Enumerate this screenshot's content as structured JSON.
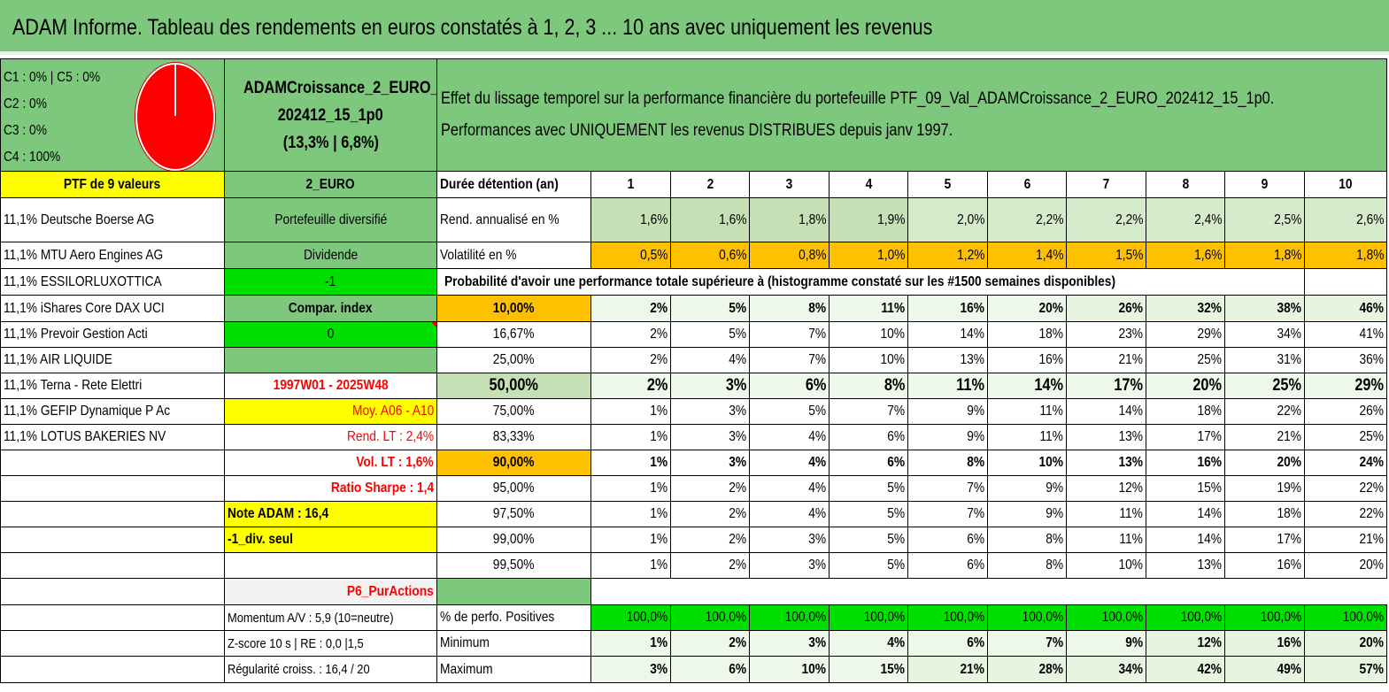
{
  "title": "ADAM Informe. Tableau des rendements en euros constatés à 1, 2, 3 ... 10 ans avec uniquement les revenus",
  "alloc": {
    "l1": "C1 : 0% | C5 : 0%",
    "l2": "C2 : 0%",
    "l3": "C3 : 0%",
    "l4": "C4 : 100%"
  },
  "portfolio": {
    "name1": "ADAMCroissance_2_EURO_",
    "name2": "202412_15_1p0",
    "stats": "(13,3% | 6,8%)"
  },
  "desc": {
    "line1": "Effet du lissage temporel sur la performance financière du portefeuille PTF_09_Val_ADAMCroissance_2_EURO_202412_15_1p0.",
    "line2": "Performances avec UNIQUEMENT les revenus DISTRIBUES depuis janv 1997."
  },
  "ptf_label": "PTF de 9 valeurs",
  "currency": "2_EURO",
  "holdings": [
    "11,1% Deutsche Boerse AG",
    "11,1% MTU Aero Engines AG",
    "11,1% ESSILORLUXOTTICA",
    "11,1% iShares Core DAX UCI",
    "11,1% Prevoir Gestion Acti",
    "11,1% AIR LIQUIDE",
    "11,1% Terna - Rete Elettri",
    "11,1% GEFIP Dynamique P Ac",
    "11,1% LOTUS BAKERIES NV"
  ],
  "info": {
    "type": "Portefeuille diversifié",
    "dividend": "Dividende",
    "div_value": "-1",
    "compar": "Compar. index",
    "compar_value": "0",
    "period": "1997W01 - 2025W48",
    "moy": "Moy. A06 - A10",
    "rend_lt": "Rend. LT : 2,4%",
    "vol_lt": "Vol. LT : 1,6%",
    "sharpe": "Ratio Sharpe : 1,4",
    "note": "Note ADAM : 16,4",
    "div_seul": "-1_div. seul",
    "p6": "P6_PurActions",
    "momentum": "Momentum A/V : 5,9 (10=neutre)",
    "zscore": "Z-score 10 s | RE : 0,0 |1,5",
    "regularite": "Régularité croiss. : 16,4 / 20"
  },
  "table": {
    "duration_label": "Durée détention (an)",
    "years": [
      "1",
      "2",
      "3",
      "4",
      "5",
      "6",
      "7",
      "8",
      "9",
      "10"
    ],
    "rend_label": "Rend. annualisé en %",
    "rend": [
      "1,6%",
      "1,6%",
      "1,8%",
      "1,9%",
      "2,0%",
      "2,2%",
      "2,2%",
      "2,4%",
      "2,5%",
      "2,6%"
    ],
    "vol_label": "Volatilité en %",
    "vol": [
      "0,5%",
      "0,6%",
      "0,8%",
      "1,0%",
      "1,2%",
      "1,4%",
      "1,5%",
      "1,6%",
      "1,8%",
      "1,8%"
    ],
    "prob_label": "Probabilité d'avoir une performance totale supérieure à (histogramme constaté sur les #1500 semaines disponibles)",
    "prob_rows": [
      {
        "level": "10,00%",
        "values": [
          "2%",
          "5%",
          "8%",
          "11%",
          "16%",
          "20%",
          "26%",
          "32%",
          "38%",
          "46%"
        ]
      },
      {
        "level": "16,67%",
        "values": [
          "2%",
          "5%",
          "7%",
          "10%",
          "14%",
          "18%",
          "23%",
          "29%",
          "34%",
          "41%"
        ]
      },
      {
        "level": "25,00%",
        "values": [
          "2%",
          "4%",
          "7%",
          "10%",
          "13%",
          "16%",
          "21%",
          "25%",
          "31%",
          "36%"
        ]
      },
      {
        "level": "50,00%",
        "values": [
          "2%",
          "3%",
          "6%",
          "8%",
          "11%",
          "14%",
          "17%",
          "20%",
          "25%",
          "29%"
        ]
      },
      {
        "level": "75,00%",
        "values": [
          "1%",
          "3%",
          "5%",
          "7%",
          "9%",
          "11%",
          "14%",
          "18%",
          "22%",
          "26%"
        ]
      },
      {
        "level": "83,33%",
        "values": [
          "1%",
          "3%",
          "4%",
          "6%",
          "9%",
          "11%",
          "13%",
          "17%",
          "21%",
          "25%"
        ]
      },
      {
        "level": "90,00%",
        "values": [
          "1%",
          "3%",
          "4%",
          "6%",
          "8%",
          "10%",
          "13%",
          "16%",
          "20%",
          "24%"
        ]
      },
      {
        "level": "95,00%",
        "values": [
          "1%",
          "2%",
          "4%",
          "5%",
          "7%",
          "9%",
          "12%",
          "15%",
          "19%",
          "22%"
        ]
      },
      {
        "level": "97,50%",
        "values": [
          "1%",
          "2%",
          "4%",
          "5%",
          "7%",
          "9%",
          "11%",
          "14%",
          "18%",
          "22%"
        ]
      },
      {
        "level": "99,00%",
        "values": [
          "1%",
          "2%",
          "3%",
          "5%",
          "6%",
          "8%",
          "11%",
          "14%",
          "17%",
          "21%"
        ]
      },
      {
        "level": "99,50%",
        "values": [
          "1%",
          "2%",
          "3%",
          "5%",
          "6%",
          "8%",
          "10%",
          "13%",
          "16%",
          "20%"
        ]
      }
    ],
    "pos_label": "% de perfo. Positives",
    "pos": [
      "100,0%",
      "100,0%",
      "100,0%",
      "100,0%",
      "100,0%",
      "100,0%",
      "100,0%",
      "100,0%",
      "100,0%",
      "100,0%"
    ],
    "min_label": "Minimum",
    "min": [
      "1%",
      "2%",
      "3%",
      "4%",
      "6%",
      "7%",
      "9%",
      "12%",
      "16%",
      "20%"
    ],
    "max_label": "Maximum",
    "max": [
      "3%",
      "6%",
      "10%",
      "15%",
      "21%",
      "28%",
      "34%",
      "42%",
      "49%",
      "57%"
    ]
  },
  "colors": {
    "green": "#7dc87d",
    "yellow": "#ffff00",
    "orange": "#ffc000",
    "bright_green": "#00e000",
    "red": "#ff0000"
  }
}
